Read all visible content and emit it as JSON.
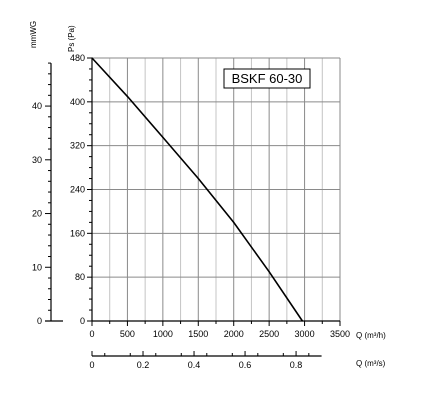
{
  "chart_data": {
    "type": "line",
    "title": "BSKF 60-30",
    "xlabel": "Q (m³/h)",
    "ylabel": "Ps (Pa)",
    "x2label": "Q (m³/s)",
    "y2label": "mmWG",
    "xlim": [
      0,
      3500
    ],
    "ylim": [
      0,
      480
    ],
    "x_ticks": [
      0,
      500,
      1000,
      1500,
      2000,
      2500,
      3000,
      3500
    ],
    "y_ticks": [
      0,
      80,
      160,
      240,
      320,
      400,
      480
    ],
    "x2_ticks": [
      0,
      0.2,
      0.4,
      0.6,
      0.8
    ],
    "x2_tick_labels": [
      "0",
      "0.2",
      "0.4",
      "0.6",
      "0.8"
    ],
    "y2_ticks": [
      0,
      10,
      20,
      30,
      40
    ],
    "grid": true,
    "series": [
      {
        "x": [
          0,
          500,
          1000,
          1500,
          2000,
          2500,
          2970
        ],
        "y": [
          480,
          410,
          335,
          260,
          180,
          90,
          0
        ]
      }
    ]
  }
}
